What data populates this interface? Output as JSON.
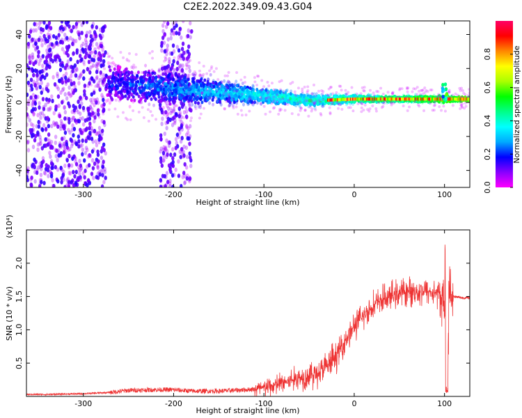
{
  "title": "C2E2.2022.349.09.43.G04",
  "chart_data": [
    {
      "type": "heatmap",
      "xlabel": "Height of straight line (km)",
      "ylabel": "Frequency (Hz)",
      "xlim": [
        -363,
        128
      ],
      "ylim": [
        -50,
        48
      ],
      "xticks": [
        -300,
        -200,
        -100,
        0,
        100
      ],
      "yticks": [
        -40,
        -20,
        0,
        20,
        40
      ],
      "colorbar": {
        "label": "Normalized spectral amplitude",
        "range": [
          0,
          1
        ],
        "ticks": [
          "0.0",
          "0.2",
          "0.4",
          "0.6",
          "0.8"
        ],
        "tick_values": [
          0.0,
          0.2,
          0.4,
          0.6,
          0.8
        ],
        "colormap": [
          "#ff00ff",
          "#8800ff",
          "#0000ff",
          "#00aaff",
          "#00ffff",
          "#00ff88",
          "#00ff00",
          "#aaff00",
          "#ffff00",
          "#ff8800",
          "#ff0000",
          "#ff0066"
        ]
      },
      "features": [
        {
          "name": "diffuse scatter",
          "x_range": [
            -363,
            -275
          ],
          "freq_range": [
            -50,
            48
          ]
        },
        {
          "name": "diffuse scatter",
          "x_range": [
            -215,
            -180
          ],
          "freq_range": [
            -50,
            48
          ]
        },
        {
          "name": "converging band",
          "x": [
            -275,
            -200,
            -150,
            -100,
            -50,
            0,
            50,
            100,
            128
          ],
          "freq_center": [
            12,
            8,
            6,
            4,
            1,
            2,
            2,
            2,
            2
          ],
          "freq_halfwidth": [
            10,
            9,
            6,
            4,
            3,
            2,
            1.5,
            2,
            1
          ]
        },
        {
          "name": "spike",
          "x": 100,
          "freq": 5
        }
      ],
      "grid": false
    },
    {
      "type": "line",
      "xlabel": "Height of straight line (km)",
      "ylabel": "SNR (10 * v/v)",
      "yscale_label": "(x10⁴)",
      "xlim": [
        -363,
        128
      ],
      "ylim": [
        0,
        2.5
      ],
      "xticks": [
        -300,
        -200,
        -100,
        0,
        100
      ],
      "yticks": [
        "0.5",
        "1.0",
        "1.5",
        "2.0"
      ],
      "ytick_values": [
        0.5,
        1.0,
        1.5,
        2.0
      ],
      "color": "#ee3333",
      "series": [
        {
          "x": [
            -363,
            -340,
            -300,
            -270,
            -250,
            -220,
            -200,
            -180,
            -150,
            -120,
            -100,
            -80,
            -60,
            -40,
            -30,
            -20,
            -10,
            0,
            10,
            20,
            30,
            40,
            50,
            60,
            70,
            80,
            90,
            95,
            100,
            103,
            105,
            110,
            120,
            128
          ],
          "values": [
            0.03,
            0.03,
            0.04,
            0.06,
            0.09,
            0.1,
            0.1,
            0.08,
            0.08,
            0.1,
            0.12,
            0.2,
            0.28,
            0.35,
            0.45,
            0.6,
            0.85,
            1.05,
            1.2,
            1.35,
            1.45,
            1.5,
            1.55,
            1.57,
            1.58,
            1.58,
            1.55,
            1.55,
            1.35,
            0.05,
            1.55,
            1.5,
            1.48,
            1.48
          ]
        }
      ],
      "grid": false
    }
  ]
}
